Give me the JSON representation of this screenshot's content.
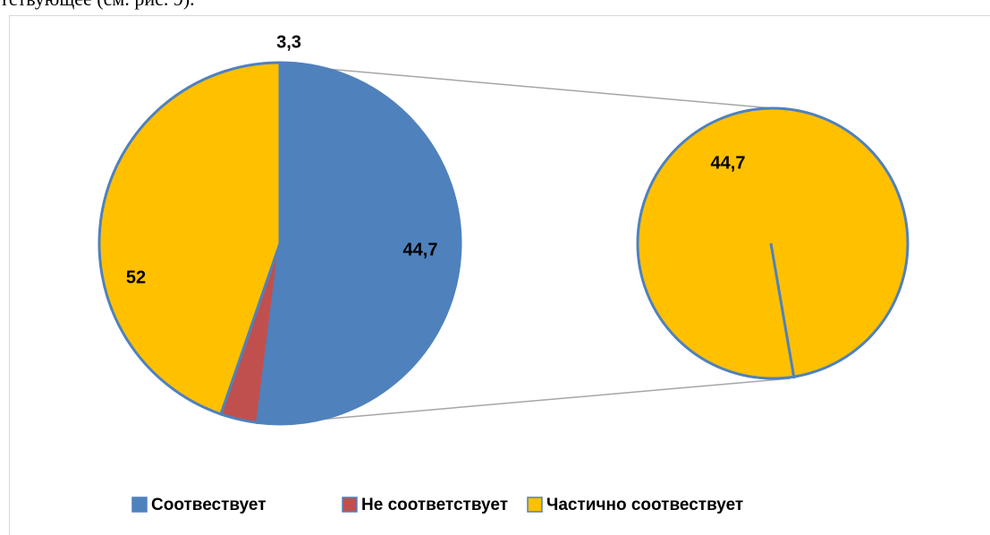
{
  "text_above": "тствующее (см. рис. 9).",
  "chart_data": {
    "type": "pie",
    "categories": [
      "Соотвествует",
      "Не соответствует",
      "Частично соотвествует"
    ],
    "values": [
      52,
      3.3,
      44.7
    ],
    "value_labels": [
      "52",
      "3,3",
      "44,7"
    ],
    "colors": [
      "#4f81bd",
      "#c0504d",
      "#ffc000"
    ],
    "legend": "bottom"
  }
}
